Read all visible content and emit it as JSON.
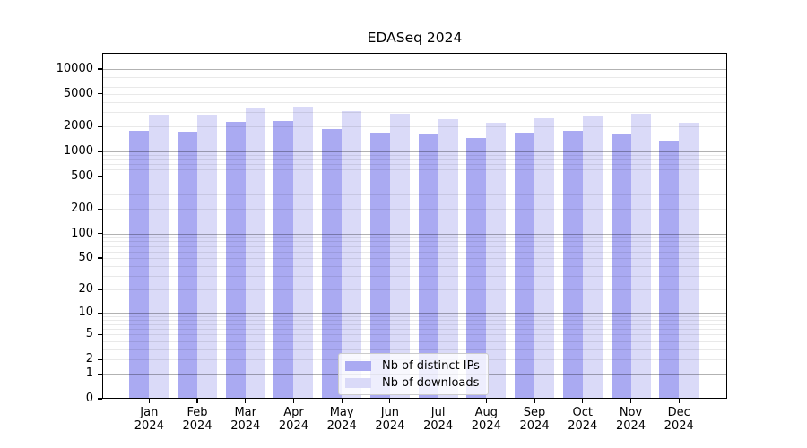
{
  "figure": {
    "title": "EDASeq 2024"
  },
  "chart_data": {
    "type": "bar",
    "title": "EDASeq 2024",
    "xlabel": "",
    "ylabel": "",
    "x_tick_line2": "2024",
    "categories": [
      "Jan",
      "Feb",
      "Mar",
      "Apr",
      "May",
      "Jun",
      "Jul",
      "Aug",
      "Sep",
      "Oct",
      "Nov",
      "Dec"
    ],
    "series": [
      {
        "name": "Nb of distinct IPs",
        "color": "#aaaaf2",
        "values": [
          1780,
          1720,
          2270,
          2320,
          1870,
          1680,
          1620,
          1460,
          1700,
          1760,
          1620,
          1350
        ]
      },
      {
        "name": "Nb of downloads",
        "color": "#dadaf8",
        "values": [
          2800,
          2760,
          3380,
          3470,
          3050,
          2840,
          2450,
          2230,
          2540,
          2640,
          2850,
          2240
        ]
      }
    ],
    "y_scale": "log1p",
    "ylim": [
      0,
      15700
    ],
    "y_ticks": [
      10000,
      5000,
      2000,
      1000,
      500,
      200,
      100,
      50,
      20,
      10,
      5,
      2,
      1,
      0
    ],
    "grid": {
      "major_at": [
        1,
        10,
        100,
        1000,
        10000
      ],
      "minor": "2-9 per decade",
      "drawn_above_bars": true
    },
    "legend": {
      "position": "lower-center-inside",
      "entries": [
        "Nb of distinct IPs",
        "Nb of downloads"
      ]
    }
  },
  "style": {
    "major_grid_color": "rgba(0,0,0,0.30)",
    "minor_grid_color": "rgba(0,0,0,0.085)",
    "spine_color": "#000000",
    "text_color": "#000000",
    "legend_border_color": "#cccccc",
    "legend_bg_color": "rgba(255,255,255,0.8)"
  }
}
